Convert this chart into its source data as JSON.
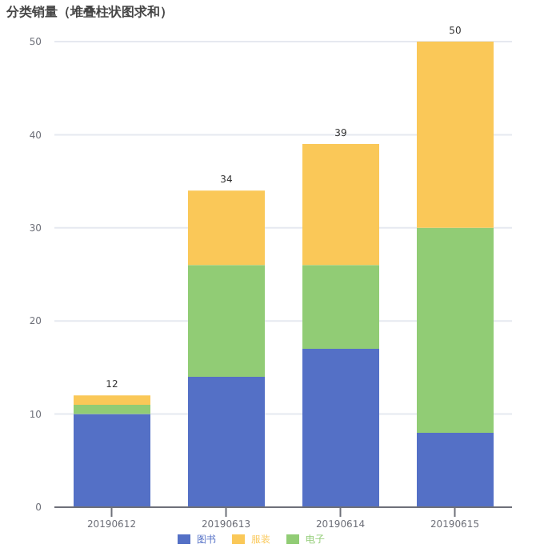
{
  "chart_data": {
    "type": "bar",
    "title": "分类销量（堆叠柱状图求和）",
    "categories": [
      "20190612",
      "20190613",
      "20190614",
      "20190615"
    ],
    "stacked": true,
    "series": [
      {
        "name": "图书",
        "color": "#5470c6",
        "values": [
          10,
          14,
          17,
          8
        ]
      },
      {
        "name": "电子",
        "color": "#91cc75",
        "values": [
          1,
          12,
          9,
          22
        ]
      },
      {
        "name": "服装",
        "color": "#fac858",
        "values": [
          1,
          8,
          13,
          20
        ]
      }
    ],
    "totals": [
      "12",
      "34",
      "39",
      "50"
    ],
    "ylim": [
      0,
      50
    ],
    "yticks": [
      0,
      10,
      20,
      30,
      40,
      50
    ],
    "grid": "y",
    "legend": "bottom"
  }
}
